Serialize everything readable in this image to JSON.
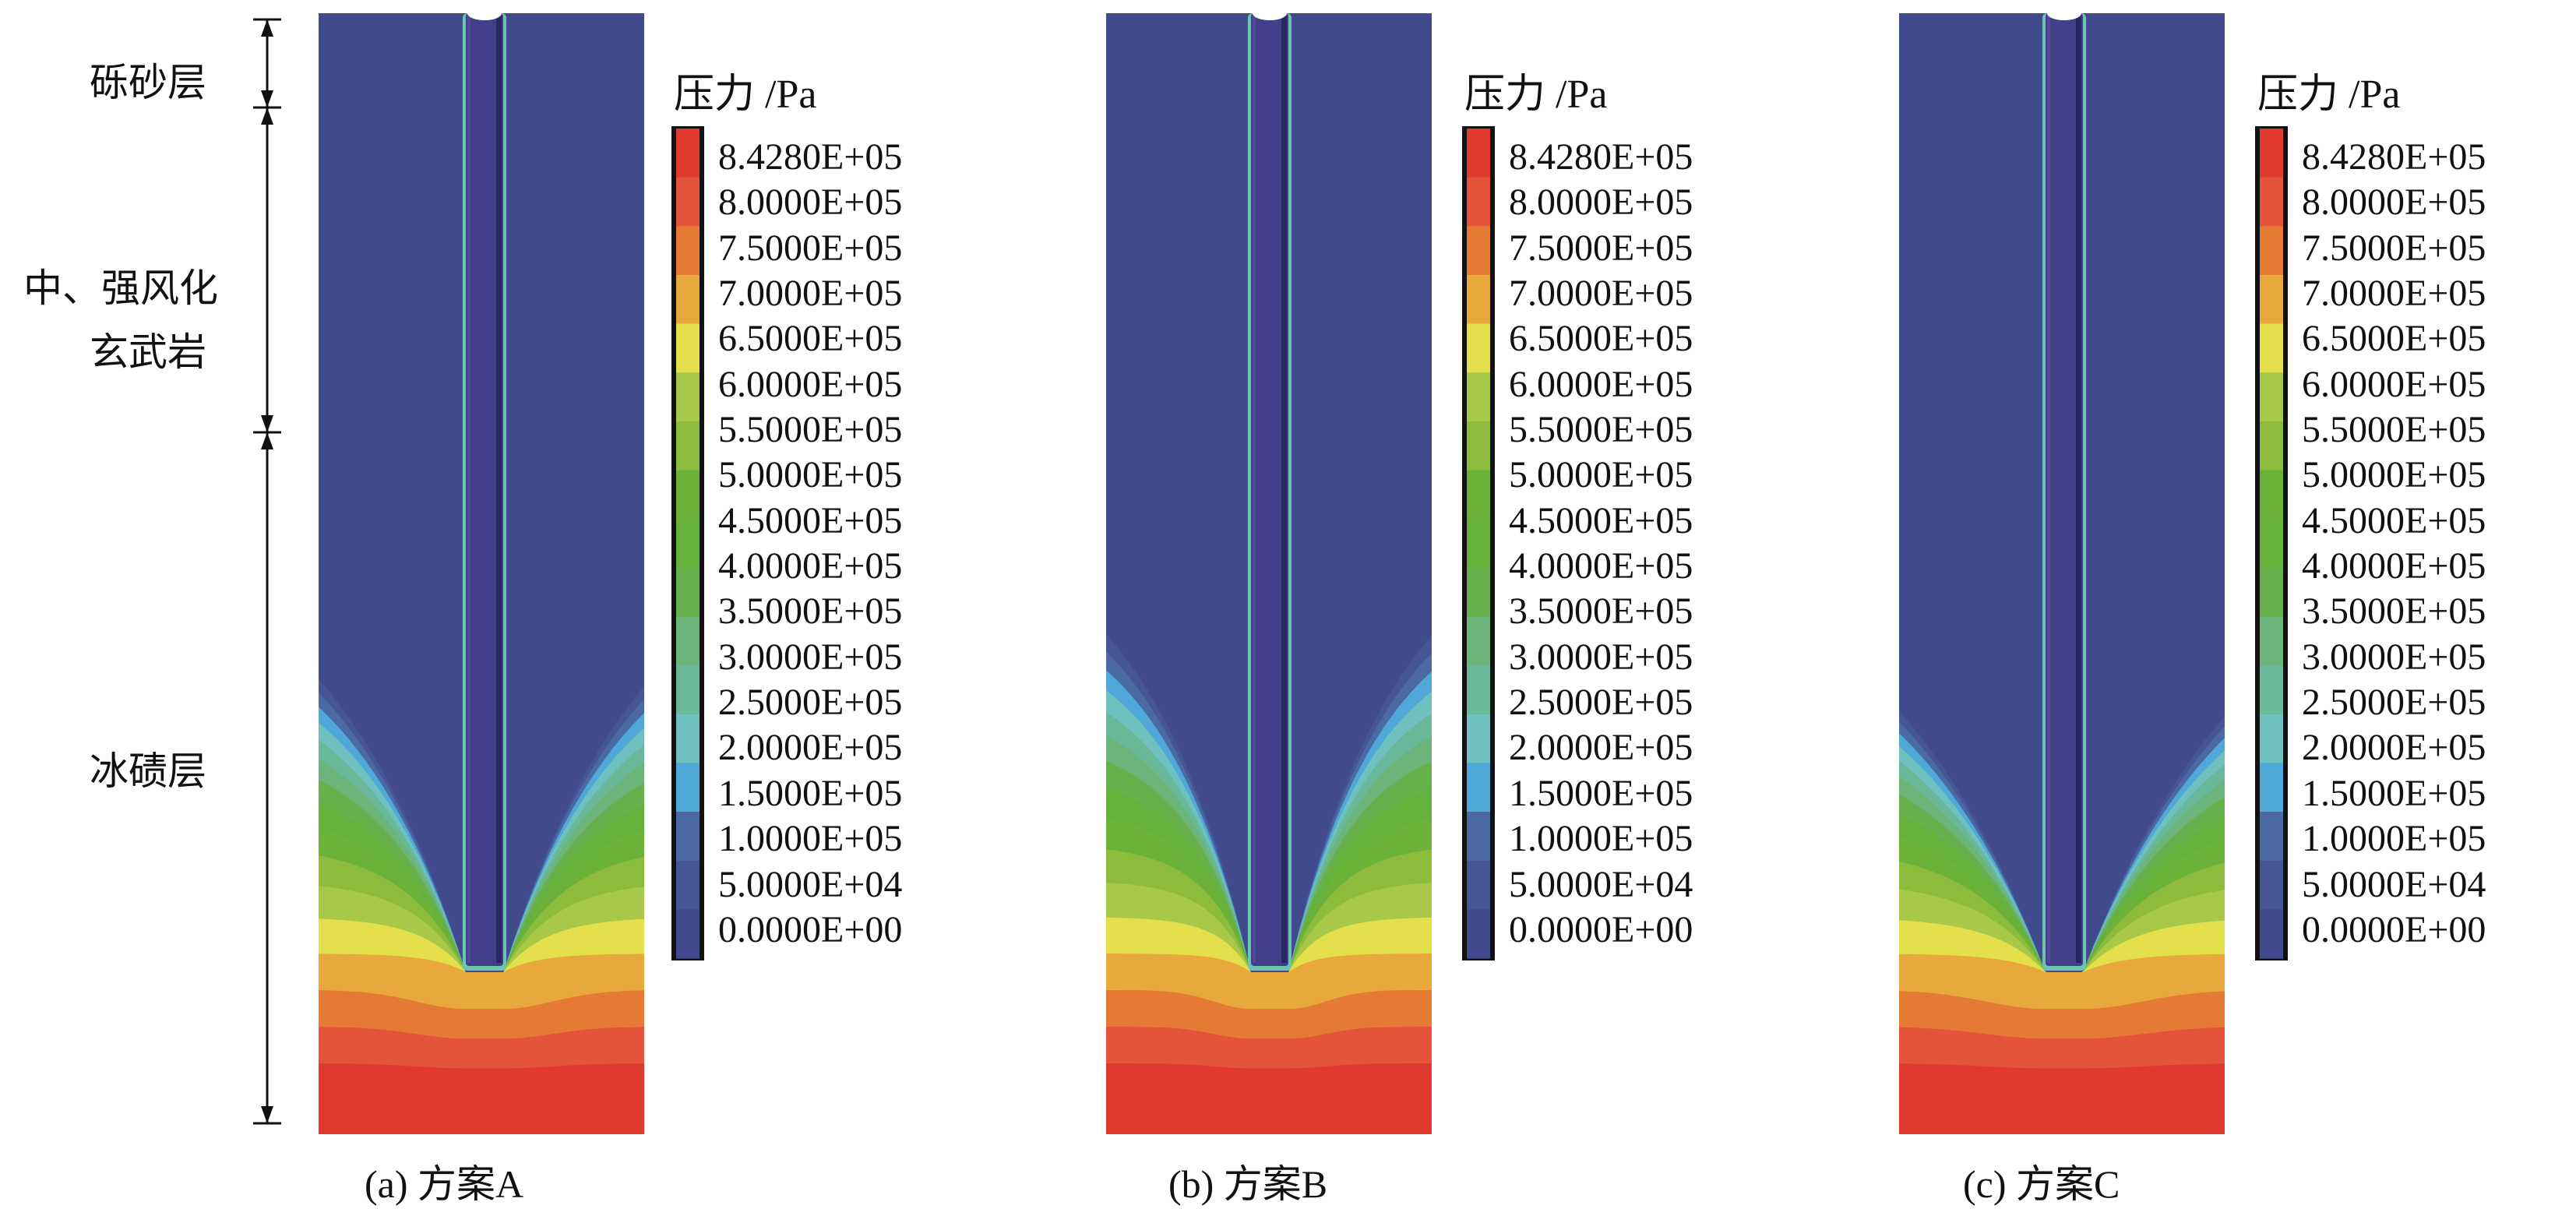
{
  "chart_data": {
    "type": "heatmap",
    "title": "",
    "quantity": "压力 /Pa",
    "legend": {
      "title": "压力 /Pa",
      "labels": [
        "8.4280E+05",
        "8.0000E+05",
        "7.5000E+05",
        "7.0000E+05",
        "6.5000E+05",
        "6.0000E+05",
        "5.5000E+05",
        "5.0000E+05",
        "4.5000E+05",
        "4.0000E+05",
        "3.5000E+05",
        "3.0000E+05",
        "2.5000E+05",
        "2.0000E+05",
        "1.5000E+05",
        "1.0000E+05",
        "5.0000E+04",
        "0.0000E+00"
      ],
      "levels": [
        0,
        50000,
        100000,
        150000,
        200000,
        250000,
        300000,
        350000,
        400000,
        450000,
        500000,
        550000,
        600000,
        650000,
        700000,
        750000,
        800000,
        842800
      ],
      "colors": [
        "#414a8c",
        "#465594",
        "#4b6aa4",
        "#4fa8d8",
        "#6fc1c0",
        "#6ab89a",
        "#6cb57a",
        "#68b04c",
        "#66b03c",
        "#6cb23a",
        "#8dbc3c",
        "#a8c84a",
        "#e3e04c",
        "#e8a83c",
        "#e47a34",
        "#e4533a",
        "#e0392f"
      ]
    },
    "panels": [
      {
        "caption": "(a) 方案A",
        "scheme": "A"
      },
      {
        "caption": "(b) 方案B",
        "scheme": "B"
      },
      {
        "caption": "(c) 方案C",
        "scheme": "C"
      }
    ],
    "strata": [
      {
        "label": "砾砂层"
      },
      {
        "label": "中、强风化",
        "label2": "玄武岩"
      },
      {
        "label": "冰碛层"
      }
    ]
  }
}
